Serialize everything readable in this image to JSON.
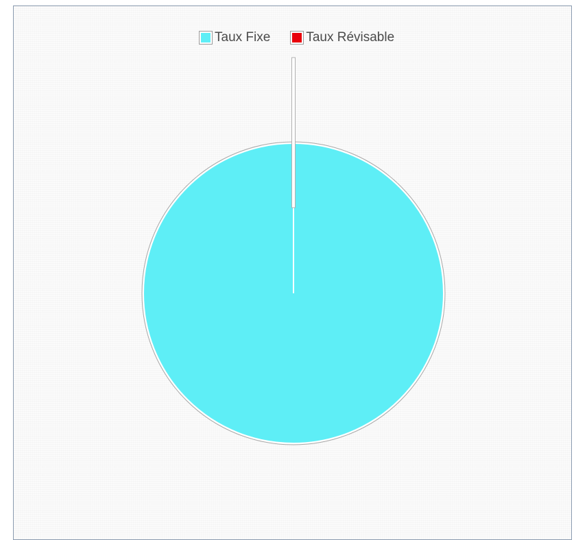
{
  "chart_data": {
    "type": "pie",
    "title": "",
    "categories": [
      "Taux Fixe",
      "Taux Révisable"
    ],
    "values": [
      100,
      0
    ],
    "colors": [
      "#5EEEF6",
      "#E8000B"
    ],
    "legend_position": "top"
  }
}
